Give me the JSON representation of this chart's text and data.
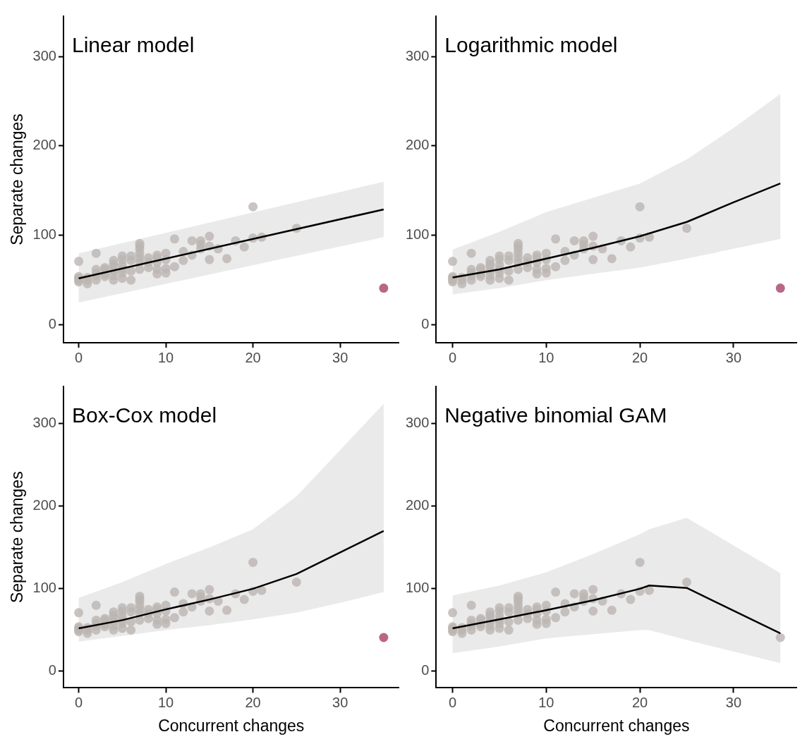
{
  "chart_data": [
    {
      "type": "scatter",
      "title": "Linear model",
      "ylabel": "Separate changes",
      "xlim": [
        -1.75,
        36.75
      ],
      "ylim": [
        -20,
        345
      ],
      "xticks": [
        0,
        10,
        20,
        30
      ],
      "yticks": [
        0,
        100,
        200,
        300
      ],
      "grid": false,
      "legend": false,
      "series": [
        {
          "marker": "circle",
          "color": "#bcb5b2",
          "x": [
            0,
            0,
            0,
            0,
            0,
            1,
            1,
            1,
            2,
            2,
            2,
            2,
            2,
            3,
            3,
            3,
            3,
            4,
            4,
            4,
            4,
            4,
            4,
            5,
            5,
            5,
            5,
            5,
            5,
            6,
            6,
            6,
            6,
            7,
            7,
            7,
            7,
            7,
            7,
            7,
            8,
            8,
            8,
            9,
            9,
            9,
            9,
            9,
            10,
            10,
            10,
            10,
            11,
            11,
            12,
            12,
            13,
            13,
            14,
            14,
            14,
            15,
            15,
            15,
            16,
            17,
            18,
            19,
            20,
            20,
            21,
            25
          ],
          "values": [
            48,
            50,
            52,
            54,
            71,
            46,
            50,
            53,
            50,
            55,
            58,
            62,
            80,
            54,
            57,
            62,
            64,
            50,
            55,
            60,
            65,
            68,
            72,
            52,
            58,
            62,
            67,
            73,
            77,
            50,
            60,
            72,
            77,
            62,
            70,
            75,
            80,
            85,
            88,
            91,
            64,
            70,
            75,
            57,
            62,
            70,
            75,
            78,
            58,
            63,
            73,
            80,
            65,
            96,
            72,
            82,
            78,
            94,
            85,
            90,
            94,
            73,
            88,
            99,
            85,
            74,
            94,
            87,
            97,
            132,
            98,
            108
          ]
        },
        {
          "marker": "circle",
          "color": "#a8416b",
          "x": [
            35
          ],
          "values": [
            41
          ]
        },
        {
          "type": "line",
          "color": "#000000",
          "x": [
            0,
            35
          ],
          "values": [
            52,
            129
          ],
          "lower": [
            25,
            98
          ],
          "upper": [
            80,
            160
          ]
        }
      ]
    },
    {
      "type": "scatter",
      "title": "Logarithmic model",
      "xlim": [
        -1.75,
        36.75
      ],
      "ylim": [
        -20,
        345
      ],
      "xticks": [
        0,
        10,
        20,
        30
      ],
      "yticks": [
        0,
        100,
        200,
        300
      ],
      "grid": false,
      "legend": false,
      "series": [
        {
          "marker": "circle",
          "color": "#bcb5b2",
          "x": [
            0,
            0,
            0,
            0,
            0,
            1,
            1,
            1,
            2,
            2,
            2,
            2,
            2,
            3,
            3,
            3,
            3,
            4,
            4,
            4,
            4,
            4,
            4,
            5,
            5,
            5,
            5,
            5,
            5,
            6,
            6,
            6,
            6,
            7,
            7,
            7,
            7,
            7,
            7,
            7,
            8,
            8,
            8,
            9,
            9,
            9,
            9,
            9,
            10,
            10,
            10,
            10,
            11,
            11,
            12,
            12,
            13,
            13,
            14,
            14,
            14,
            15,
            15,
            15,
            16,
            17,
            18,
            19,
            20,
            20,
            21,
            25
          ],
          "values": [
            48,
            50,
            52,
            54,
            71,
            46,
            50,
            53,
            50,
            55,
            58,
            62,
            80,
            54,
            57,
            62,
            64,
            50,
            55,
            60,
            65,
            68,
            72,
            52,
            58,
            62,
            67,
            73,
            77,
            50,
            60,
            72,
            77,
            62,
            70,
            75,
            80,
            85,
            88,
            91,
            64,
            70,
            75,
            57,
            62,
            70,
            75,
            78,
            58,
            63,
            73,
            80,
            65,
            96,
            72,
            82,
            78,
            94,
            85,
            90,
            94,
            73,
            88,
            99,
            85,
            74,
            94,
            87,
            97,
            132,
            98,
            108
          ]
        },
        {
          "marker": "circle",
          "color": "#a8416b",
          "x": [
            35
          ],
          "values": [
            41
          ]
        },
        {
          "type": "line",
          "color": "#000000",
          "x": [
            0,
            5,
            10,
            15,
            20,
            25,
            30,
            35
          ],
          "values": [
            53,
            62,
            74,
            86,
            99,
            115,
            137,
            158
          ],
          "lower": [
            34,
            41,
            50,
            57,
            64,
            74,
            85,
            96
          ],
          "upper": [
            84,
            104,
            126,
            142,
            158,
            185,
            220,
            258
          ]
        }
      ]
    },
    {
      "type": "scatter",
      "title": "Box-Cox model",
      "xlabel": "Concurrent changes",
      "ylabel": "Separate changes",
      "xlim": [
        -1.75,
        36.75
      ],
      "ylim": [
        -20,
        345
      ],
      "xticks": [
        0,
        10,
        20,
        30
      ],
      "yticks": [
        0,
        100,
        200,
        300
      ],
      "grid": false,
      "legend": false,
      "series": [
        {
          "marker": "circle",
          "color": "#bcb5b2",
          "x": [
            0,
            0,
            0,
            0,
            0,
            1,
            1,
            1,
            2,
            2,
            2,
            2,
            2,
            3,
            3,
            3,
            3,
            4,
            4,
            4,
            4,
            4,
            4,
            5,
            5,
            5,
            5,
            5,
            5,
            6,
            6,
            6,
            6,
            7,
            7,
            7,
            7,
            7,
            7,
            7,
            8,
            8,
            8,
            9,
            9,
            9,
            9,
            9,
            10,
            10,
            10,
            10,
            11,
            11,
            12,
            12,
            13,
            13,
            14,
            14,
            14,
            15,
            15,
            15,
            16,
            17,
            18,
            19,
            20,
            20,
            21,
            25
          ],
          "values": [
            48,
            50,
            52,
            54,
            71,
            46,
            50,
            53,
            50,
            55,
            58,
            62,
            80,
            54,
            57,
            62,
            64,
            50,
            55,
            60,
            65,
            68,
            72,
            52,
            58,
            62,
            67,
            73,
            77,
            50,
            60,
            72,
            77,
            62,
            70,
            75,
            80,
            85,
            88,
            91,
            64,
            70,
            75,
            57,
            62,
            70,
            75,
            78,
            58,
            63,
            73,
            80,
            65,
            96,
            72,
            82,
            78,
            94,
            85,
            90,
            94,
            73,
            88,
            99,
            85,
            74,
            94,
            87,
            97,
            132,
            98,
            108
          ]
        },
        {
          "marker": "circle",
          "color": "#a8416b",
          "x": [
            35
          ],
          "values": [
            41
          ]
        },
        {
          "type": "line",
          "color": "#000000",
          "x": [
            0,
            5,
            10,
            15,
            20,
            25,
            30,
            35
          ],
          "values": [
            52,
            62,
            75,
            87,
            100,
            118,
            144,
            170
          ],
          "lower": [
            36,
            43,
            50,
            56,
            63,
            71,
            83,
            96
          ],
          "upper": [
            89,
            108,
            130,
            150,
            172,
            212,
            268,
            324
          ]
        }
      ]
    },
    {
      "type": "scatter",
      "title": "Negative binomial GAM",
      "xlabel": "Concurrent changes",
      "xlim": [
        -1.75,
        36.75
      ],
      "ylim": [
        -20,
        345
      ],
      "xticks": [
        0,
        10,
        20,
        30
      ],
      "yticks": [
        0,
        100,
        200,
        300
      ],
      "grid": false,
      "legend": false,
      "series": [
        {
          "marker": "circle",
          "color": "#bcb5b2",
          "x": [
            0,
            0,
            0,
            0,
            0,
            1,
            1,
            1,
            2,
            2,
            2,
            2,
            2,
            3,
            3,
            3,
            3,
            4,
            4,
            4,
            4,
            4,
            4,
            5,
            5,
            5,
            5,
            5,
            5,
            6,
            6,
            6,
            6,
            7,
            7,
            7,
            7,
            7,
            7,
            7,
            8,
            8,
            8,
            9,
            9,
            9,
            9,
            9,
            10,
            10,
            10,
            10,
            11,
            11,
            12,
            12,
            13,
            13,
            14,
            14,
            14,
            15,
            15,
            15,
            16,
            17,
            18,
            19,
            20,
            20,
            21,
            25,
            35
          ],
          "values": [
            48,
            50,
            52,
            54,
            71,
            46,
            50,
            53,
            50,
            55,
            58,
            62,
            80,
            54,
            57,
            62,
            64,
            50,
            55,
            60,
            65,
            68,
            72,
            52,
            58,
            62,
            67,
            73,
            77,
            50,
            60,
            72,
            77,
            62,
            70,
            75,
            80,
            85,
            88,
            91,
            64,
            70,
            75,
            57,
            62,
            70,
            75,
            78,
            58,
            63,
            73,
            80,
            65,
            96,
            72,
            82,
            78,
            94,
            85,
            90,
            94,
            73,
            88,
            99,
            85,
            74,
            94,
            87,
            97,
            132,
            98,
            108,
            41
          ]
        },
        {
          "type": "line",
          "color": "#000000",
          "x": [
            0,
            5,
            10,
            15,
            20,
            21,
            25,
            35
          ],
          "values": [
            52,
            63,
            74,
            86,
            100,
            104,
            101,
            46
          ],
          "lower": [
            22,
            30,
            40,
            45,
            50,
            50,
            38,
            10
          ],
          "upper": [
            92,
            104,
            120,
            142,
            166,
            172,
            186,
            119
          ]
        }
      ]
    }
  ]
}
